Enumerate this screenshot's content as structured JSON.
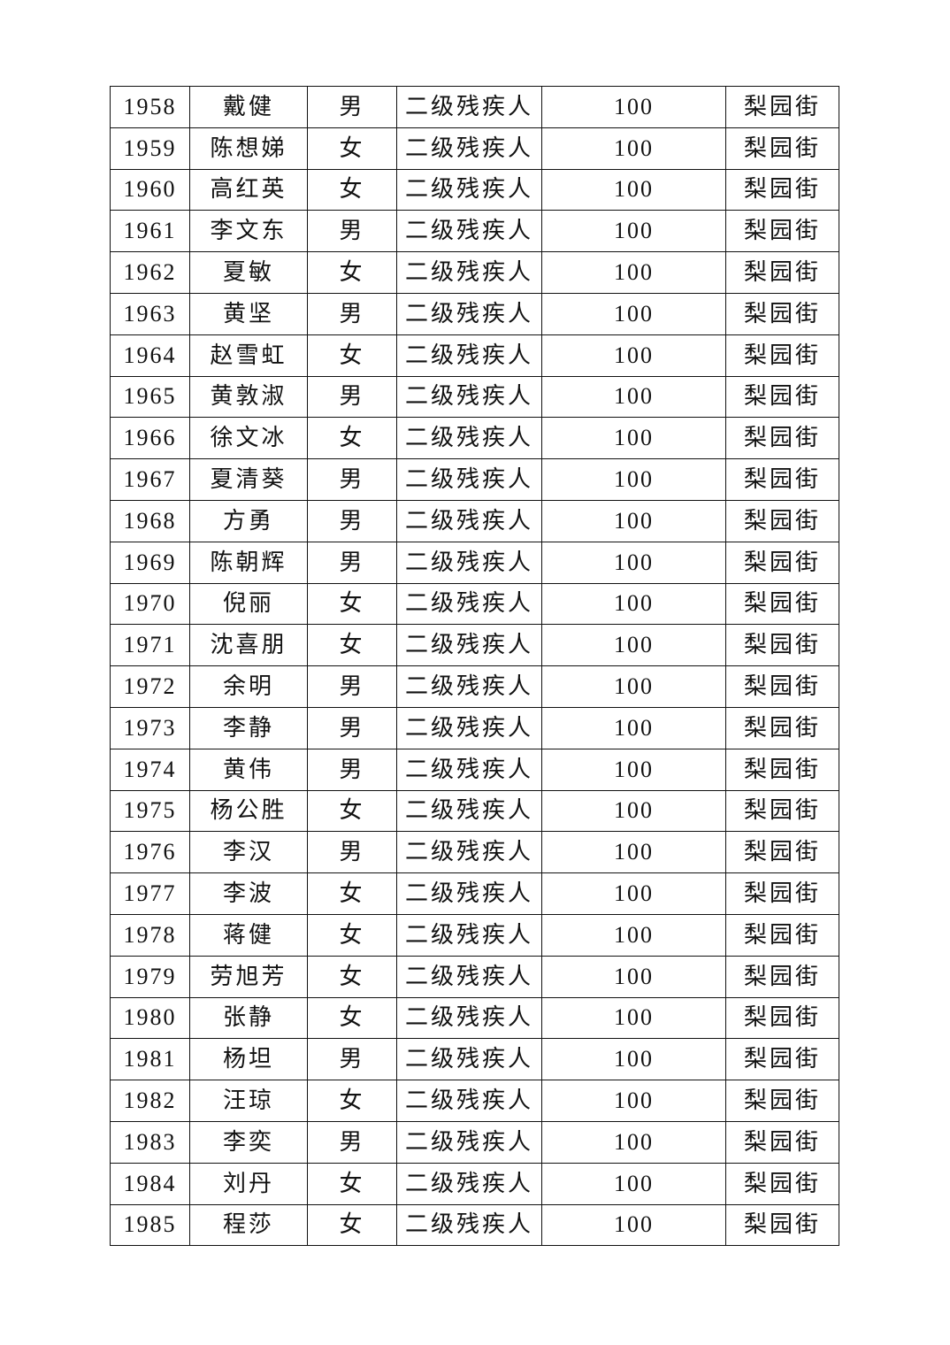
{
  "table": {
    "rows": [
      [
        "1958",
        "戴健",
        "男",
        "二级残疾人",
        "100",
        "梨园街"
      ],
      [
        "1959",
        "陈想娣",
        "女",
        "二级残疾人",
        "100",
        "梨园街"
      ],
      [
        "1960",
        "高红英",
        "女",
        "二级残疾人",
        "100",
        "梨园街"
      ],
      [
        "1961",
        "李文东",
        "男",
        "二级残疾人",
        "100",
        "梨园街"
      ],
      [
        "1962",
        "夏敏",
        "女",
        "二级残疾人",
        "100",
        "梨园街"
      ],
      [
        "1963",
        "黄坚",
        "男",
        "二级残疾人",
        "100",
        "梨园街"
      ],
      [
        "1964",
        "赵雪虹",
        "女",
        "二级残疾人",
        "100",
        "梨园街"
      ],
      [
        "1965",
        "黄敦淑",
        "男",
        "二级残疾人",
        "100",
        "梨园街"
      ],
      [
        "1966",
        "徐文冰",
        "女",
        "二级残疾人",
        "100",
        "梨园街"
      ],
      [
        "1967",
        "夏清葵",
        "男",
        "二级残疾人",
        "100",
        "梨园街"
      ],
      [
        "1968",
        "方勇",
        "男",
        "二级残疾人",
        "100",
        "梨园街"
      ],
      [
        "1969",
        "陈朝辉",
        "男",
        "二级残疾人",
        "100",
        "梨园街"
      ],
      [
        "1970",
        "倪丽",
        "女",
        "二级残疾人",
        "100",
        "梨园街"
      ],
      [
        "1971",
        "沈喜朋",
        "女",
        "二级残疾人",
        "100",
        "梨园街"
      ],
      [
        "1972",
        "余明",
        "男",
        "二级残疾人",
        "100",
        "梨园街"
      ],
      [
        "1973",
        "李静",
        "男",
        "二级残疾人",
        "100",
        "梨园街"
      ],
      [
        "1974",
        "黄伟",
        "男",
        "二级残疾人",
        "100",
        "梨园街"
      ],
      [
        "1975",
        "杨公胜",
        "女",
        "二级残疾人",
        "100",
        "梨园街"
      ],
      [
        "1976",
        "李汉",
        "男",
        "二级残疾人",
        "100",
        "梨园街"
      ],
      [
        "1977",
        "李波",
        "女",
        "二级残疾人",
        "100",
        "梨园街"
      ],
      [
        "1978",
        "蒋健",
        "女",
        "二级残疾人",
        "100",
        "梨园街"
      ],
      [
        "1979",
        "劳旭芳",
        "女",
        "二级残疾人",
        "100",
        "梨园街"
      ],
      [
        "1980",
        "张静",
        "女",
        "二级残疾人",
        "100",
        "梨园街"
      ],
      [
        "1981",
        "杨坦",
        "男",
        "二级残疾人",
        "100",
        "梨园街"
      ],
      [
        "1982",
        "汪琼",
        "女",
        "二级残疾人",
        "100",
        "梨园街"
      ],
      [
        "1983",
        "李奕",
        "男",
        "二级残疾人",
        "100",
        "梨园街"
      ],
      [
        "1984",
        "刘丹",
        "女",
        "二级残疾人",
        "100",
        "梨园街"
      ],
      [
        "1985",
        "程莎",
        "女",
        "二级残疾人",
        "100",
        "梨园街"
      ]
    ]
  }
}
